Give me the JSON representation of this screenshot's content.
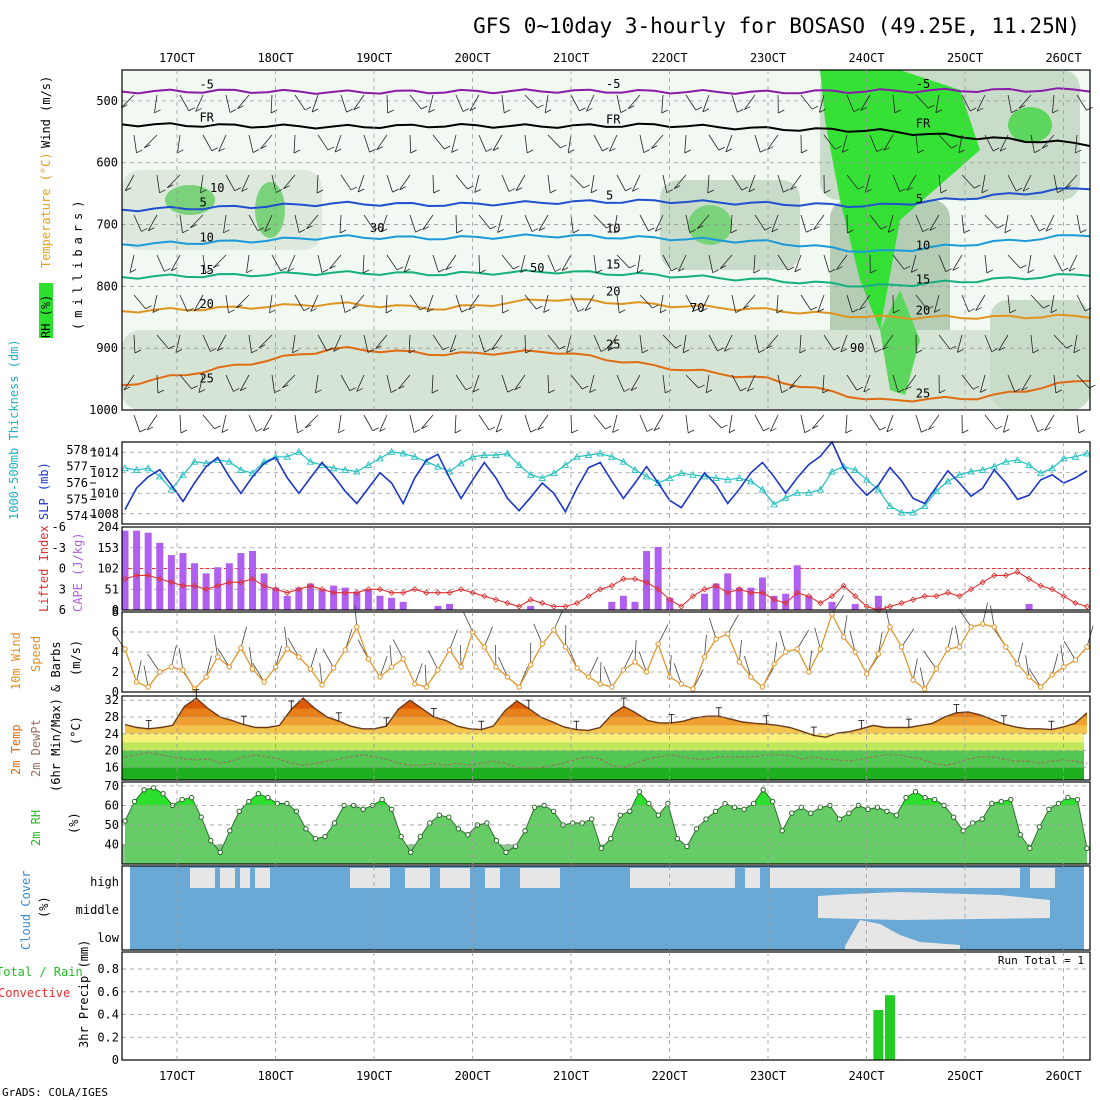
{
  "chart_data": [
    {
      "type": "meteogram",
      "title": "GFS 0~10day 3-hourly for BOSASO (49.25E, 11.25N)",
      "dates": [
        "17OCT",
        "18OCT",
        "19OCT",
        "20OCT",
        "21OCT",
        "22OCT",
        "23OCT",
        "24OCT",
        "25OCT",
        "26OCT"
      ],
      "credit": "GrADS: COLA/IGES"
    },
    {
      "type": "contour",
      "panel": "upper-air",
      "ylabel_parts": [
        "RH (%)",
        "Temperature (°C)",
        "Wind (m/s)",
        "(millibars)"
      ],
      "colors": {
        "rh": "#2ee02e",
        "temp": "#e03030",
        "wind": "#000000",
        "mb": "#000000"
      },
      "pressure_ticks": [
        500,
        600,
        700,
        800,
        900,
        1000
      ],
      "ylim": [
        450,
        1000
      ],
      "isotherms": [
        {
          "label": "-5",
          "color": "#8a1aa8",
          "p": [
            485,
            484,
            486,
            485,
            484,
            485,
            486,
            484,
            483,
            482
          ]
        },
        {
          "label": "FR",
          "color": "#000000",
          "p": [
            538,
            540,
            542,
            540,
            541,
            539,
            545,
            548,
            560,
            570
          ]
        },
        {
          "label": "5",
          "color": "#2050d0",
          "p": [
            676,
            672,
            666,
            668,
            664,
            662,
            666,
            670,
            655,
            640
          ]
        },
        {
          "label": "10",
          "color": "#1a9ad8",
          "p": [
            732,
            728,
            720,
            722,
            718,
            722,
            728,
            745,
            730,
            716
          ]
        },
        {
          "label": "15",
          "color": "#14b080",
          "p": [
            785,
            782,
            778,
            780,
            776,
            782,
            790,
            800,
            790,
            780
          ]
        },
        {
          "label": "20",
          "color": "#e09420",
          "p": [
            840,
            835,
            828,
            836,
            820,
            830,
            838,
            850,
            850,
            848
          ]
        },
        {
          "label": "25",
          "color": "#e06a10",
          "p": [
            960,
            930,
            900,
            910,
            905,
            930,
            950,
            985,
            980,
            950
          ]
        }
      ],
      "rh_labels": [
        "10",
        "30",
        "50",
        "70",
        "90"
      ]
    },
    {
      "type": "line",
      "panel": "thickness-slp",
      "ylabel_thickness": "1000-500mb Thickness (dm)",
      "ylabel_slp": "SLP (mb)",
      "thickness_ticks": [
        574,
        575,
        576,
        577,
        578
      ],
      "thickness_ylim": [
        573.5,
        578.5
      ],
      "slp_ticks": [
        1008,
        1010,
        1012,
        1014
      ],
      "slp_ylim": [
        1007,
        1015
      ],
      "series": [
        {
          "name": "thickness",
          "color": "#20c0c0",
          "values": [
            576.9,
            576.8,
            576.9,
            576.4,
            575.6,
            576.5,
            577.3,
            577.2,
            577.4,
            577.3,
            576.8,
            576.6,
            577.3,
            577.6,
            577.6,
            577.9,
            577.3,
            577.1,
            576.9,
            576.8,
            576.7,
            577.1,
            577.5,
            577.9,
            577.8,
            577.6,
            577.3,
            577.0,
            576.7,
            577.2,
            577.6,
            577.7,
            577.7,
            577.8,
            577.1,
            576.5,
            576.3,
            576.6,
            577.1,
            577.6,
            577.7,
            577.8,
            577.6,
            577.3,
            576.8,
            576.4,
            576.0,
            576.3,
            576.6,
            576.5,
            576.4,
            576.3,
            576.2,
            576.3,
            576.1,
            575.6,
            574.7,
            575.1,
            575.4,
            575.4,
            575.6,
            576.7,
            577.0,
            576.8,
            576.2,
            575.6,
            574.6,
            574.2,
            574.2,
            574.6,
            575.5,
            576.1,
            576.5,
            576.7,
            576.8,
            577.0,
            577.3,
            577.4,
            577.1,
            576.6,
            576.9,
            577.5,
            577.6,
            577.8
          ]
        },
        {
          "name": "slp",
          "color": "#1a36c8",
          "values": [
            1008.4,
            1010.5,
            1011.6,
            1012.3,
            1010.8,
            1009.2,
            1011.0,
            1012.6,
            1013.5,
            1011.6,
            1010.0,
            1011.6,
            1012.9,
            1013.5,
            1011.5,
            1010.0,
            1011.5,
            1013.0,
            1011.7,
            1010.2,
            1009.0,
            1010.5,
            1012.0,
            1011.0,
            1009.0,
            1011.5,
            1013.2,
            1013.8,
            1011.5,
            1009.5,
            1011.3,
            1013.0,
            1011.5,
            1009.5,
            1008.3,
            1009.6,
            1011.0,
            1010.0,
            1008.2,
            1010.5,
            1012.5,
            1013.0,
            1011.2,
            1009.5,
            1011.0,
            1012.6,
            1011.0,
            1009.3,
            1008.6,
            1010.3,
            1012.0,
            1010.8,
            1009.0,
            1010.4,
            1012.0,
            1013.0,
            1011.6,
            1010.0,
            1011.5,
            1012.8,
            1013.6,
            1015.0,
            1012.5,
            1011.0,
            1009.8,
            1010.8,
            1012.5,
            1011.2,
            1009.5,
            1009.0,
            1010.6,
            1012.2,
            1011.0,
            1009.7,
            1010.5,
            1012.3,
            1011.0,
            1009.4,
            1009.8,
            1011.3,
            1011.8,
            1011.0,
            1011.5,
            1012.2
          ]
        }
      ]
    },
    {
      "type": "bar",
      "panel": "instability",
      "ylabel_lifted": "Lifted Index",
      "ylabel_cape": "CAPE (J/kg)",
      "lifted_ticks": [
        -6,
        -3,
        0,
        3,
        6
      ],
      "lifted_labels": [
        "-6",
        "-3",
        "0",
        "3",
        "6"
      ],
      "cape_ticks": [
        0,
        51,
        102,
        153,
        204
      ],
      "cape_ylim": [
        0,
        204
      ],
      "lifted_ylim": [
        -6,
        6
      ],
      "cape": [
        195,
        195,
        190,
        165,
        135,
        140,
        115,
        90,
        105,
        115,
        140,
        145,
        90,
        55,
        35,
        55,
        65,
        50,
        60,
        55,
        45,
        50,
        35,
        30,
        20,
        0,
        0,
        10,
        15,
        0,
        0,
        0,
        0,
        0,
        0,
        10,
        0,
        0,
        0,
        0,
        0,
        0,
        20,
        35,
        20,
        145,
        155,
        30,
        0,
        0,
        40,
        65,
        90,
        55,
        55,
        80,
        35,
        40,
        110,
        35,
        0,
        20,
        0,
        15,
        0,
        35,
        0,
        0,
        0,
        0,
        0,
        0,
        0,
        0,
        0,
        0,
        0,
        0,
        15,
        0,
        0,
        0,
        0,
        0
      ],
      "lifted": [
        1.5,
        1.0,
        1.0,
        1.5,
        2.0,
        2.5,
        2.5,
        3.0,
        2.5,
        2.0,
        2.0,
        1.5,
        2.5,
        3.0,
        3.5,
        3.0,
        2.5,
        3.0,
        3.5,
        3.5,
        3.5,
        3.0,
        3.0,
        3.5,
        3.5,
        3.0,
        3.5,
        3.5,
        3.5,
        3.0,
        3.5,
        4.0,
        4.5,
        5.0,
        5.5,
        4.5,
        5.0,
        5.5,
        5.5,
        5.0,
        4.0,
        3.0,
        2.5,
        1.5,
        1.5,
        2.0,
        3.0,
        4.5,
        5.5,
        4.0,
        3.0,
        2.5,
        3.5,
        3.0,
        3.5,
        3.5,
        4.5,
        5.0,
        3.5,
        4.0,
        5.0,
        4.0,
        2.5,
        4.0,
        5.5,
        6.0,
        5.5,
        5.0,
        4.5,
        4.0,
        4.0,
        3.5,
        4.0,
        3.0,
        2.0,
        1.0,
        1.0,
        0.5,
        1.5,
        2.5,
        3.0,
        4.0,
        5.0,
        5.5
      ]
    },
    {
      "type": "line",
      "panel": "wind-10m",
      "ylabel_parts": [
        "10m Wind",
        "Speed",
        "& Barbs",
        "(m/s)"
      ],
      "ticks": [
        0,
        2,
        4,
        6,
        8
      ],
      "ylim": [
        0,
        8
      ],
      "series": [
        {
          "name": "speed",
          "color": "#e09020",
          "values": [
            4.3,
            1.0,
            0.5,
            2.0,
            2.5,
            2.2,
            0.3,
            1.5,
            3.5,
            2.5,
            4.4,
            2.3,
            1.0,
            2.5,
            4.3,
            3.5,
            2.3,
            0.7,
            2.4,
            4.2,
            6.5,
            3.3,
            1.5,
            2.5,
            3.3,
            0.8,
            0.5,
            2.2,
            4.2,
            2.5,
            6.0,
            4.5,
            2.5,
            1.5,
            0.5,
            2.7,
            4.8,
            6.2,
            4.5,
            2.4,
            1.5,
            0.8,
            0.5,
            2.2,
            3.0,
            2.0,
            4.8,
            1.5,
            0.8,
            0.3,
            3.5,
            5.3,
            5.8,
            3.0,
            1.5,
            0.5,
            2.8,
            4.0,
            4.3,
            2.0,
            4.3,
            7.8,
            5.5,
            4.0,
            1.8,
            3.8,
            6.5,
            4.5,
            1.2,
            0.3,
            2.3,
            4.3,
            4.5,
            6.5,
            6.8,
            6.5,
            4.5,
            2.8,
            1.5,
            0.5,
            1.7,
            2.5,
            3.2,
            4.5
          ]
        }
      ]
    },
    {
      "type": "area",
      "panel": "temperature-2m",
      "ylabel_parts": [
        "2m Temp",
        "2m DewPt",
        "(6hr Min/Max)",
        "(°C)"
      ],
      "ticks": [
        16,
        20,
        24,
        28,
        32
      ],
      "ylim": [
        13,
        33
      ],
      "series": [
        {
          "name": "temp",
          "color": "#e8660a",
          "values": [
            26.2,
            25.5,
            25.2,
            25.5,
            26.0,
            30.5,
            32.5,
            30.0,
            28.0,
            27.2,
            26.2,
            25.5,
            25.5,
            26.0,
            29.8,
            32.5,
            30.0,
            28.0,
            27.0,
            25.8,
            25.2,
            25.2,
            25.8,
            29.8,
            32.0,
            30.0,
            28.0,
            27.2,
            25.8,
            25.2,
            25.0,
            25.8,
            29.5,
            31.8,
            30.0,
            28.0,
            26.8,
            25.6,
            25.0,
            24.8,
            25.5,
            28.6,
            30.5,
            29.0,
            27.2,
            26.6,
            26.6,
            27.0,
            27.8,
            28.2,
            28.2,
            27.5,
            26.8,
            26.5,
            26.3,
            26.0,
            25.5,
            24.6,
            23.6,
            23.2,
            24.2,
            24.5,
            25.2,
            26.0,
            25.5,
            25.5,
            25.5,
            26.0,
            26.5,
            28.0,
            29.0,
            29.2,
            28.5,
            27.4,
            26.3,
            25.6,
            25.2,
            25.2,
            25.0,
            25.6,
            26.5,
            29.0
          ]
        },
        {
          "name": "dewpoint",
          "color": "#9a7060",
          "values": [
            18.5,
            19.0,
            19.5,
            19.0,
            18.5,
            18.0,
            17.8,
            18.0,
            17.0,
            17.5,
            18.5,
            19.0,
            18.5,
            18.0,
            17.0,
            16.5,
            17.0,
            17.5,
            18.0,
            18.5,
            19.0,
            18.5,
            18.0,
            17.0,
            16.5,
            16.5,
            17.0,
            16.5,
            17.0,
            16.5,
            17.0,
            17.5,
            17.0,
            16.0,
            15.8,
            16.0,
            16.5,
            17.0,
            18.0,
            18.5,
            18.0,
            16.5,
            16.0,
            17.0,
            18.0,
            18.5,
            19.0,
            18.5,
            18.0,
            18.0,
            18.5,
            18.5,
            18.5,
            18.5,
            19.0,
            19.0,
            18.8,
            18.0,
            18.5,
            18.0,
            17.8,
            17.5,
            18.0,
            18.5,
            19.0,
            19.0,
            18.5,
            18.0,
            17.0,
            16.5,
            17.0,
            18.0,
            18.5,
            18.5,
            18.0,
            17.5,
            17.5,
            17.0,
            17.5,
            17.8,
            17.5,
            17.0
          ]
        }
      ]
    },
    {
      "type": "area",
      "panel": "rh-2m",
      "ylabel_parts": [
        "2m RH",
        "(%)"
      ],
      "ticks": [
        40,
        50,
        60,
        70
      ],
      "ylim": [
        30,
        72
      ],
      "series": [
        {
          "name": "rh",
          "color": "#2ecc2e",
          "values": [
            52,
            62,
            68,
            69,
            66,
            60,
            63,
            64,
            54,
            42,
            36,
            47,
            57,
            62,
            66,
            64,
            61,
            61,
            57,
            48,
            43,
            44,
            51,
            60,
            60,
            58,
            60,
            63,
            58,
            44,
            36,
            44,
            51,
            55,
            54,
            48,
            45,
            50,
            51,
            42,
            36,
            39,
            47,
            59,
            60,
            57,
            50,
            51,
            51,
            53,
            38,
            43,
            55,
            57,
            67,
            61,
            55,
            61,
            43,
            39,
            48,
            53,
            57,
            61,
            59,
            58,
            61,
            68,
            62,
            47,
            56,
            59,
            56,
            59,
            60,
            53,
            56,
            60,
            58,
            59,
            57,
            55,
            64,
            67,
            64,
            63,
            60,
            54,
            47,
            51,
            53,
            61,
            62,
            63,
            45,
            38,
            49,
            58,
            61,
            64,
            63,
            38
          ]
        }
      ]
    },
    {
      "type": "area",
      "panel": "cloud-cover",
      "ylabel_parts": [
        "Cloud Cover",
        "(%)"
      ],
      "levels": [
        "high",
        "middle",
        "low"
      ],
      "colors": {
        "cloud": "#e6e6e6",
        "clear": "#6aa8d6"
      }
    },
    {
      "type": "bar",
      "panel": "precip",
      "ylabel_parts": [
        "Total / Rain",
        "Convective",
        "3hr Precip (mm)"
      ],
      "annotation": "Run Total = 1",
      "ticks": [
        0,
        0.2,
        0.4,
        0.6,
        0.8
      ],
      "tick_labels": [
        "0",
        "0.2",
        "0.4",
        "0.6",
        "0.8"
      ],
      "ylim": [
        0,
        0.95
      ],
      "colors": {
        "total": "#22cc22",
        "convective": "#e03030"
      },
      "values": [
        0,
        0,
        0,
        0,
        0,
        0,
        0,
        0,
        0,
        0,
        0,
        0,
        0,
        0,
        0,
        0,
        0,
        0,
        0,
        0,
        0,
        0,
        0,
        0,
        0,
        0,
        0,
        0,
        0,
        0,
        0,
        0,
        0,
        0,
        0,
        0,
        0,
        0,
        0,
        0,
        0,
        0,
        0,
        0,
        0,
        0,
        0,
        0,
        0,
        0,
        0,
        0,
        0,
        0,
        0,
        0,
        0,
        0,
        0,
        0,
        0,
        0,
        0,
        0,
        0,
        0.44,
        0.57,
        0,
        0,
        0,
        0,
        0,
        0,
        0,
        0,
        0,
        0,
        0,
        0,
        0,
        0,
        0,
        0,
        0
      ]
    }
  ]
}
